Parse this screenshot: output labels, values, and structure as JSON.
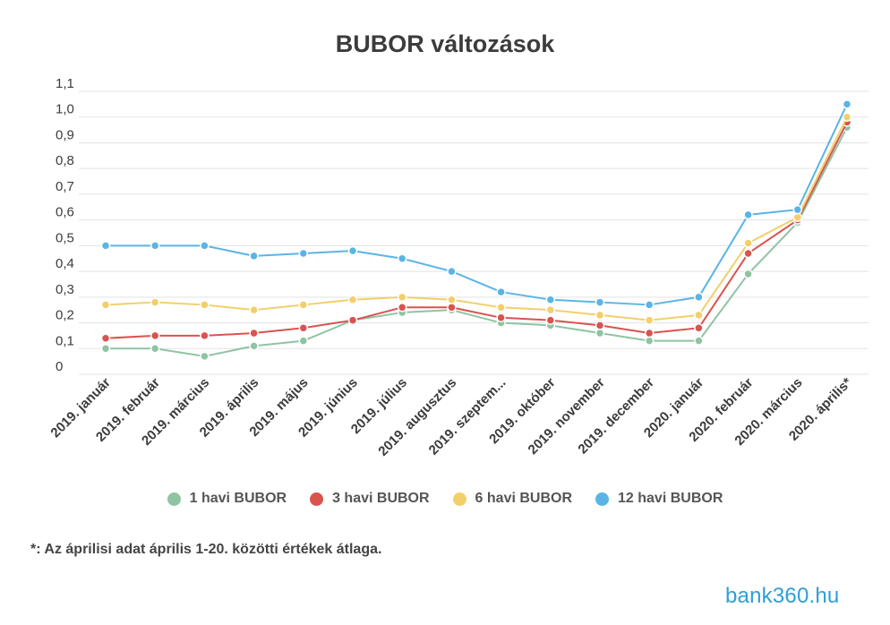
{
  "chart_data": {
    "type": "line",
    "title": "BUBOR változások",
    "xlabel": "",
    "ylabel": "",
    "ylim": [
      0,
      1.1
    ],
    "yticks": [
      "0",
      "0,1",
      "0,2",
      "0,3",
      "0,4",
      "0,5",
      "0,6",
      "0,7",
      "0,8",
      "0,9",
      "1,0",
      "1,1"
    ],
    "grid": true,
    "legend": "bottom",
    "categories": [
      "2019. január",
      "2019. február",
      "2019. március",
      "2019. április",
      "2019. május",
      "2019. június",
      "2019. július",
      "2019. augusztus",
      "2019. szeptem...",
      "2019. október",
      "2019. november",
      "2019. december",
      "2020. január",
      "2020. február",
      "2020. március",
      "2020. április*"
    ],
    "series": [
      {
        "name": "1 havi BUBOR",
        "color": "#8fc4a3",
        "values": [
          0.1,
          0.1,
          0.07,
          0.11,
          0.13,
          0.21,
          0.24,
          0.25,
          0.2,
          0.19,
          0.16,
          0.13,
          0.13,
          0.39,
          0.59,
          0.96
        ]
      },
      {
        "name": "3 havi BUBOR",
        "color": "#d9534f",
        "values": [
          0.14,
          0.15,
          0.15,
          0.16,
          0.18,
          0.21,
          0.26,
          0.26,
          0.22,
          0.21,
          0.19,
          0.16,
          0.18,
          0.47,
          0.6,
          0.98
        ]
      },
      {
        "name": "6 havi BUBOR",
        "color": "#f2cf6b",
        "values": [
          0.27,
          0.28,
          0.27,
          0.25,
          0.27,
          0.29,
          0.3,
          0.29,
          0.26,
          0.25,
          0.23,
          0.21,
          0.23,
          0.51,
          0.61,
          1.0
        ]
      },
      {
        "name": "12 havi BUBOR",
        "color": "#5bb4e5",
        "values": [
          0.5,
          0.5,
          0.5,
          0.46,
          0.47,
          0.48,
          0.45,
          0.4,
          0.32,
          0.29,
          0.28,
          0.27,
          0.3,
          0.62,
          0.64,
          1.05
        ]
      }
    ]
  },
  "footnote": "*: Az áprilisi adat április 1-20. közötti értékek átlaga.",
  "logo_text": "bank360.hu"
}
